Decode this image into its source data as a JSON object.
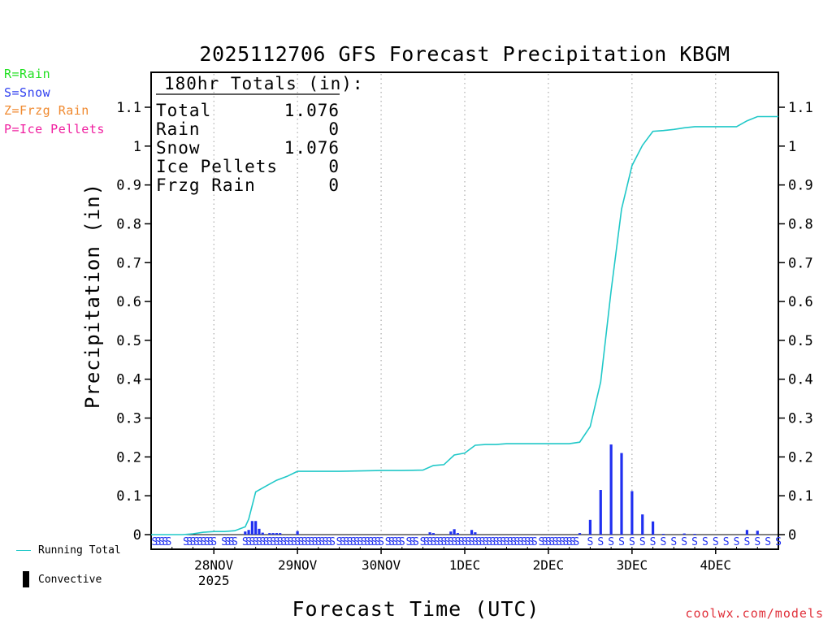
{
  "chart_data": {
    "type": "bar+line",
    "title": "2025112706 GFS Forecast Precipitation KBGM",
    "xlabel": "Forecast Time (UTC)",
    "ylabel": "Precipitation (in)",
    "ylim": [
      0,
      1.18
    ],
    "y_ticks": [
      "0",
      "0.1",
      "0.2",
      "0.3",
      "0.4",
      "0.5",
      "0.6",
      "0.7",
      "0.8",
      "0.9",
      "1",
      "1.1"
    ],
    "x_ticks": [
      {
        "label": "28NOV",
        "sub": "2025",
        "hour": 18
      },
      {
        "label": "29NOV",
        "sub": "",
        "hour": 42
      },
      {
        "label": "30NOV",
        "sub": "",
        "hour": 66
      },
      {
        "label": "1DEC",
        "sub": "",
        "hour": 90
      },
      {
        "label": "2DEC",
        "sub": "",
        "hour": 114
      },
      {
        "label": "3DEC",
        "sub": "",
        "hour": 138
      },
      {
        "label": "4DEC",
        "sub": "",
        "hour": 162
      }
    ],
    "grid": "vertical dotted at day boundaries",
    "totals_box": {
      "heading": "180hr Totals (in):",
      "rows": [
        {
          "label": "Total",
          "value": "1.076"
        },
        {
          "label": "Rain",
          "value": "0"
        },
        {
          "label": "Snow",
          "value": "1.076"
        },
        {
          "label": "Ice Pellets",
          "value": "0"
        },
        {
          "label": "Frzg Rain",
          "value": "0"
        }
      ]
    },
    "running_total": {
      "name": "Running Total",
      "color": "#20c8c8",
      "points": [
        [
          0,
          0
        ],
        [
          9,
          0
        ],
        [
          12,
          0.002
        ],
        [
          15,
          0.006
        ],
        [
          18,
          0.008
        ],
        [
          21,
          0.008
        ],
        [
          24,
          0.01
        ],
        [
          27,
          0.02
        ],
        [
          28,
          0.04
        ],
        [
          30,
          0.11
        ],
        [
          33,
          0.125
        ],
        [
          36,
          0.14
        ],
        [
          39,
          0.15
        ],
        [
          42,
          0.163
        ],
        [
          48,
          0.163
        ],
        [
          54,
          0.163
        ],
        [
          60,
          0.164
        ],
        [
          66,
          0.165
        ],
        [
          72,
          0.165
        ],
        [
          78,
          0.166
        ],
        [
          81,
          0.178
        ],
        [
          84,
          0.18
        ],
        [
          87,
          0.205
        ],
        [
          90,
          0.21
        ],
        [
          93,
          0.23
        ],
        [
          96,
          0.232
        ],
        [
          99,
          0.232
        ],
        [
          102,
          0.234
        ],
        [
          108,
          0.234
        ],
        [
          114,
          0.234
        ],
        [
          120,
          0.234
        ],
        [
          123,
          0.238
        ],
        [
          126,
          0.278
        ],
        [
          129,
          0.393
        ],
        [
          132,
          0.627
        ],
        [
          135,
          0.838
        ],
        [
          138,
          0.95
        ],
        [
          141,
          1.002
        ],
        [
          144,
          1.038
        ],
        [
          147,
          1.04
        ],
        [
          150,
          1.043
        ],
        [
          153,
          1.047
        ],
        [
          156,
          1.05
        ],
        [
          159,
          1.05
        ],
        [
          162,
          1.05
        ],
        [
          165,
          1.05
        ],
        [
          168,
          1.05
        ],
        [
          171,
          1.065
        ],
        [
          174,
          1.076
        ],
        [
          177,
          1.076
        ],
        [
          180,
          1.076
        ]
      ]
    },
    "snow_bars": {
      "name": "Snow",
      "color": "#2030f0",
      "points": [
        [
          27,
          0.008
        ],
        [
          28,
          0.012
        ],
        [
          29,
          0.035
        ],
        [
          30,
          0.035
        ],
        [
          31,
          0.015
        ],
        [
          32,
          0.005
        ],
        [
          34,
          0.004
        ],
        [
          35,
          0.004
        ],
        [
          36,
          0.004
        ],
        [
          37,
          0.004
        ],
        [
          42,
          0.009
        ],
        [
          80,
          0.006
        ],
        [
          81,
          0.004
        ],
        [
          86,
          0.008
        ],
        [
          87,
          0.014
        ],
        [
          88,
          0.004
        ],
        [
          92,
          0.012
        ],
        [
          93,
          0.006
        ],
        [
          123,
          0.004
        ],
        [
          126,
          0.038
        ],
        [
          129,
          0.115
        ],
        [
          132,
          0.232
        ],
        [
          135,
          0.21
        ],
        [
          138,
          0.112
        ],
        [
          141,
          0.052
        ],
        [
          144,
          0.034
        ],
        [
          147,
          0.002
        ],
        [
          153,
          0.003
        ],
        [
          156,
          0.002
        ],
        [
          171,
          0.012
        ],
        [
          174,
          0.01
        ]
      ]
    },
    "ptype_markers": {
      "symbol": "S",
      "color": "#2030f0",
      "dense_ranges": [
        [
          1,
          5
        ],
        [
          10,
          18
        ],
        [
          21,
          24
        ],
        [
          27,
          52
        ],
        [
          54,
          60
        ],
        [
          61,
          66
        ],
        [
          68,
          72
        ],
        [
          74,
          76
        ],
        [
          78,
          98
        ],
        [
          99,
          110
        ],
        [
          112,
          115
        ],
        [
          116,
          122
        ]
      ],
      "spaced_hours": [
        126,
        129,
        132,
        135,
        138,
        141,
        144,
        147,
        150,
        153,
        156,
        159,
        162,
        165,
        168,
        171,
        174,
        177,
        180
      ]
    }
  },
  "legend": {
    "ptype_keys": [
      {
        "text": "R=Rain",
        "color": "#20e020"
      },
      {
        "text": "S=Snow",
        "color": "#3040f0"
      },
      {
        "text": "Z=Frzg Rain",
        "color": "#f08a30"
      },
      {
        "text": "P=Ice Pellets",
        "color": "#f020a0"
      }
    ],
    "running_total_label": "Running Total",
    "convective_label": "Convective"
  },
  "credit": "coolwx.com/models"
}
